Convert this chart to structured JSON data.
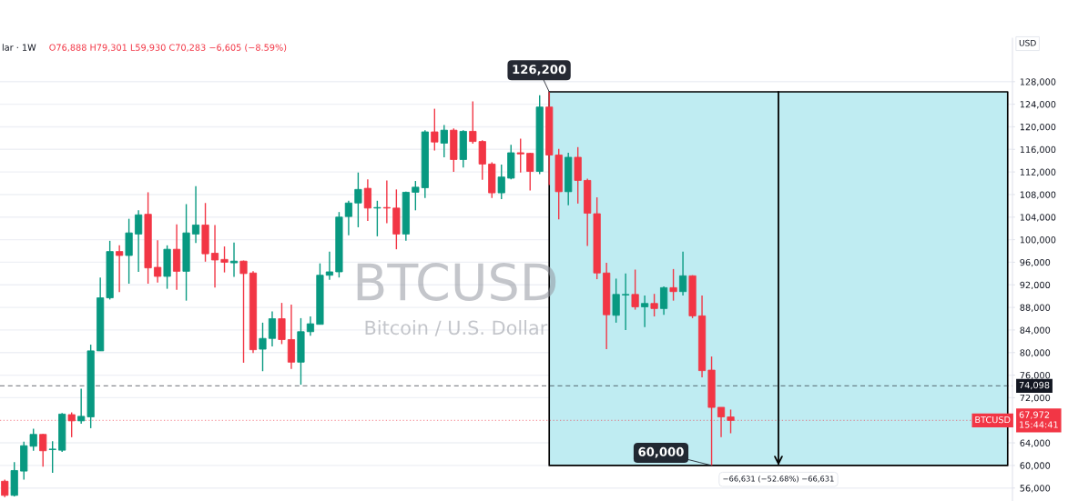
{
  "chart_data": {
    "type": "candlestick",
    "title": "BTCUSD",
    "subtitle": "Bitcoin / U.S. Dollar",
    "ylabel": "USD",
    "categories": [
      null,
      null,
      null,
      null,
      null,
      null,
      null,
      null,
      null,
      null,
      null,
      null,
      null,
      null,
      null,
      null,
      null,
      null,
      null,
      null,
      null,
      null,
      null,
      null,
      null,
      null,
      null,
      null,
      null,
      null,
      null,
      null,
      null,
      null,
      null,
      null,
      null,
      null,
      null,
      null,
      null,
      null,
      null,
      null,
      null,
      null,
      null,
      null,
      null,
      null,
      null,
      null,
      null,
      null,
      null,
      null,
      null,
      null,
      null,
      null,
      null,
      null,
      null,
      null,
      null,
      null,
      null,
      null,
      null,
      null,
      null,
      null,
      null,
      null,
      null,
      null,
      null,
      null,
      null,
      null,
      null,
      null,
      null,
      null,
      null,
      null,
      null,
      null,
      null,
      null,
      null,
      null,
      null,
      null,
      null,
      null,
      null,
      null,
      null,
      null,
      null,
      null,
      null,
      null,
      null,
      null
    ],
    "ohlc": [
      [
        57200,
        57500,
        54400,
        54700
      ],
      [
        54700,
        60600,
        54500,
        59100
      ],
      [
        59000,
        64200,
        57500,
        63500
      ],
      [
        63400,
        66500,
        62600,
        65500
      ],
      [
        65500,
        65600,
        59800,
        62600
      ],
      [
        62800,
        64300,
        58700,
        62900
      ],
      [
        62700,
        69300,
        62400,
        69100
      ],
      [
        69000,
        69400,
        65000,
        67900
      ],
      [
        67900,
        73600,
        67400,
        68700
      ],
      [
        68600,
        81400,
        66600,
        80300
      ],
      [
        80300,
        93300,
        80300,
        89700
      ],
      [
        89700,
        99800,
        89400,
        97900
      ],
      [
        97900,
        99000,
        90700,
        97200
      ],
      [
        97200,
        103700,
        92200,
        101200
      ],
      [
        101000,
        105200,
        94300,
        104400
      ],
      [
        104500,
        108400,
        92200,
        95000
      ],
      [
        95100,
        99900,
        92400,
        93500
      ],
      [
        93500,
        99000,
        91300,
        98300
      ],
      [
        98300,
        102700,
        91100,
        94400
      ],
      [
        94400,
        106300,
        89200,
        101200
      ],
      [
        101000,
        109500,
        99400,
        102600
      ],
      [
        102600,
        106500,
        96100,
        97500
      ],
      [
        97600,
        102600,
        91500,
        96400
      ],
      [
        96500,
        98800,
        94200,
        96000
      ],
      [
        95900,
        99500,
        93400,
        96200
      ],
      [
        96200,
        96300,
        78200,
        94000
      ],
      [
        94100,
        94400,
        79900,
        80500
      ],
      [
        80600,
        85300,
        76700,
        82500
      ],
      [
        82500,
        87300,
        81100,
        86000
      ],
      [
        86000,
        88800,
        81500,
        82300
      ],
      [
        82300,
        88500,
        77100,
        78300
      ],
      [
        78300,
        86100,
        74300,
        83700
      ],
      [
        83700,
        86400,
        83000,
        85100
      ],
      [
        85000,
        95800,
        85000,
        93700
      ],
      [
        93700,
        97900,
        92900,
        94300
      ],
      [
        94300,
        104900,
        93300,
        104000
      ],
      [
        104100,
        106900,
        100800,
        106500
      ],
      [
        106500,
        111900,
        102200,
        108900
      ],
      [
        109100,
        110700,
        103300,
        105600
      ],
      [
        105600,
        106900,
        100600,
        105700
      ],
      [
        105700,
        110500,
        102900,
        105600
      ],
      [
        105600,
        108900,
        98300,
        101000
      ],
      [
        101000,
        108500,
        99800,
        108400
      ],
      [
        108400,
        110400,
        105200,
        109300
      ],
      [
        109200,
        119400,
        107400,
        119100
      ],
      [
        119100,
        123200,
        115800,
        117300
      ],
      [
        117100,
        120300,
        114600,
        119400
      ],
      [
        119400,
        119700,
        112000,
        114200
      ],
      [
        114200,
        119400,
        112800,
        119200
      ],
      [
        119200,
        124500,
        117000,
        117400
      ],
      [
        117400,
        117600,
        110600,
        113400
      ],
      [
        113400,
        113700,
        107400,
        108300
      ],
      [
        108300,
        113300,
        107200,
        111100
      ],
      [
        110900,
        116800,
        110700,
        115400
      ],
      [
        115400,
        117900,
        111900,
        115200
      ],
      [
        115300,
        115400,
        108700,
        112100
      ],
      [
        112100,
        125600,
        111600,
        123500
      ],
      [
        123500,
        126200,
        109700,
        115000
      ],
      [
        115000,
        116100,
        103600,
        108500
      ],
      [
        108500,
        115400,
        106100,
        114600
      ],
      [
        114600,
        116400,
        106400,
        110500
      ],
      [
        110500,
        110800,
        98900,
        104700
      ],
      [
        104600,
        107500,
        93000,
        94100
      ],
      [
        94100,
        95900,
        80600,
        86700
      ],
      [
        86600,
        93100,
        85300,
        90300
      ],
      [
        90200,
        94000,
        84000,
        90300
      ],
      [
        90300,
        94700,
        87600,
        88100
      ],
      [
        88100,
        90100,
        84500,
        88700
      ],
      [
        88700,
        90400,
        86400,
        87800
      ],
      [
        87800,
        91700,
        86700,
        91500
      ],
      [
        91500,
        94800,
        89200,
        90800
      ],
      [
        90800,
        97900,
        90100,
        93600
      ],
      [
        93600,
        93700,
        86100,
        86500
      ],
      [
        86500,
        90100,
        75600,
        76800
      ],
      [
        76888,
        79301,
        59930,
        70283
      ],
      [
        70300,
        70300,
        65000,
        68600
      ],
      [
        68600,
        69900,
        65700,
        67972
      ],
      null,
      null,
      null,
      null,
      null,
      null,
      null,
      null,
      null,
      null,
      null,
      null,
      null,
      null,
      null,
      null,
      null,
      null,
      null,
      null,
      null,
      null,
      null,
      null,
      null,
      null,
      null,
      null,
      null
    ],
    "colors": [
      "#f23645",
      "#089981",
      "#089981",
      "#089981",
      "#f23645",
      "#089981",
      "#089981",
      "#f23645",
      "#089981",
      "#089981",
      "#089981",
      "#089981",
      "#f23645",
      "#089981",
      "#089981",
      "#f23645",
      "#f23645",
      "#089981",
      "#f23645",
      "#089981",
      "#089981",
      "#f23645",
      "#f23645",
      "#f23645",
      "#089981",
      "#f23645",
      "#f23645",
      "#089981",
      "#089981",
      "#f23645",
      "#f23645",
      "#089981",
      "#089981",
      "#089981",
      "#089981",
      "#089981",
      "#089981",
      "#089981",
      "#f23645",
      "#089981",
      "#f23645",
      "#f23645",
      "#089981",
      "#089981",
      "#089981",
      "#f23645",
      "#089981",
      "#f23645",
      "#089981",
      "#f23645",
      "#f23645",
      "#f23645",
      "#089981",
      "#089981",
      "#f23645",
      "#f23645",
      "#089981",
      "#f23645",
      "#f23645",
      "#089981",
      "#f23645",
      "#f23645",
      "#f23645",
      "#f23645",
      "#089981",
      "#089981",
      "#f23645",
      "#089981",
      "#f23645",
      "#089981",
      "#f23645",
      "#089981",
      "#f23645",
      "#f23645",
      "#f23645",
      "#f23645",
      "#f23645",
      null,
      null,
      null,
      null,
      null,
      null,
      null,
      null,
      null,
      null,
      null,
      null,
      null,
      null,
      null,
      null,
      null,
      null,
      null,
      null,
      null,
      null,
      null,
      null,
      null,
      null,
      null,
      null,
      null
    ],
    "ylim": [
      53700,
      135700
    ],
    "yticks": [
      {
        "value": 56000,
        "label": "56,000"
      },
      {
        "value": 60000,
        "label": "60,000"
      },
      {
        "value": 64000,
        "label": "64,000"
      },
      {
        "value": 72000,
        "label": "72,000"
      },
      {
        "value": 76000,
        "label": "76,000"
      },
      {
        "value": 80000,
        "label": "80,000"
      },
      {
        "value": 84000,
        "label": "84,000"
      },
      {
        "value": 88000,
        "label": "88,000"
      },
      {
        "value": 92000,
        "label": "92,000"
      },
      {
        "value": 96000,
        "label": "96,000"
      },
      {
        "value": 100000,
        "label": "100,000"
      },
      {
        "value": 104000,
        "label": "104,000"
      },
      {
        "value": 108000,
        "label": "108,000"
      },
      {
        "value": 112000,
        "label": "112,000"
      },
      {
        "value": 116000,
        "label": "116,000"
      },
      {
        "value": 120000,
        "label": "120,000"
      },
      {
        "value": 124000,
        "label": "124,000"
      },
      {
        "value": 128000,
        "label": "128,000"
      }
    ],
    "tick_labels": "y",
    "grid": "y",
    "bands": [
      {
        "axis": "y",
        "from": 60000,
        "to": 126200,
        "label": "−66,631 (−52.68%) −66,631",
        "color": "#bfecf2"
      }
    ],
    "ref_lines": [
      {
        "axis": "y",
        "value": 74098,
        "label": "74,098",
        "color": "#131722",
        "line_style": "dashed"
      },
      {
        "axis": "y",
        "value": 67972,
        "label": "67,972\n15:44:41",
        "color": "#f23645",
        "line_style": "dotted"
      }
    ],
    "annotations": [
      "lar · 1W",
      "O76,888 H79,301 L59,930 C70,283 −6,605 (−8.59%)",
      {
        "text": "126,200",
        "y": 126200
      },
      {
        "text": "60,000",
        "y": 60000
      },
      {
        "text": "BTCUSD",
        "y": 67972
      }
    ]
  }
}
